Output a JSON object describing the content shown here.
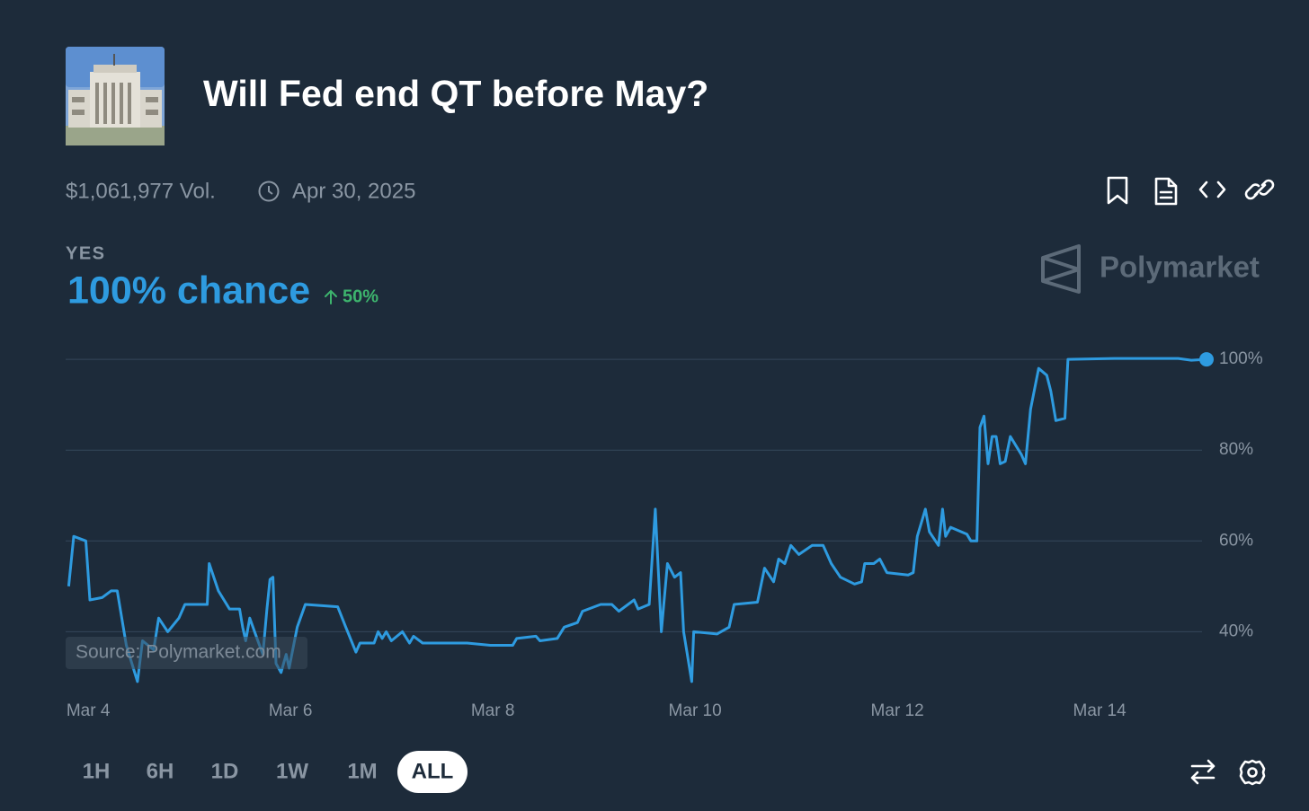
{
  "header": {
    "title": "Will Fed end QT before May?",
    "volume": "$1,061,977 Vol.",
    "end_date": "Apr 30, 2025"
  },
  "outcome": {
    "label": "YES",
    "chance": "100% chance",
    "change": "50%"
  },
  "brand": "Polymarket",
  "chart_data": {
    "type": "line",
    "color": "#2e9be0",
    "annotation": "Source: Polymarket.com",
    "x": [
      3.86,
      3.91,
      4.03,
      4.07,
      4.19,
      4.28,
      4.34,
      4.43,
      4.54,
      4.59,
      4.7,
      4.75,
      4.84,
      4.95,
      5.01,
      5.23,
      5.25,
      5.34,
      5.45,
      5.55,
      5.58,
      5.61,
      5.65,
      5.73,
      5.78,
      5.82,
      5.85,
      5.88,
      5.91,
      5.96,
      6.01,
      6.04,
      6.12,
      6.2,
      6.52,
      6.6,
      6.7,
      6.74,
      6.88,
      6.92,
      6.96,
      7.0,
      7.05,
      7.16,
      7.23,
      7.27,
      7.36,
      7.8,
      8.03,
      8.25,
      8.29,
      8.48,
      8.52,
      8.69,
      8.76,
      8.89,
      8.94,
      9.12,
      9.23,
      9.3,
      9.45,
      9.49,
      9.6,
      9.66,
      9.72,
      9.78,
      9.85,
      9.91,
      9.94,
      10.02,
      10.04,
      10.27,
      10.39,
      10.44,
      10.67,
      10.74,
      10.83,
      10.88,
      10.94,
      11.0,
      11.08,
      11.21,
      11.32,
      11.4,
      11.49,
      11.63,
      11.7,
      11.73,
      11.82,
      11.88,
      11.95,
      12.16,
      12.21,
      12.25,
      12.33,
      12.37,
      12.46,
      12.5,
      12.53,
      12.58,
      12.74,
      12.78,
      12.84,
      12.87,
      12.91,
      12.95,
      12.99,
      13.03,
      13.07,
      13.12,
      13.17,
      13.28,
      13.32,
      13.37,
      13.45,
      13.53,
      13.57,
      13.62,
      13.71,
      13.74,
      14.2,
      14.83,
      14.96,
      15.11
    ],
    "values": [
      50,
      61,
      60,
      47,
      47.5,
      49,
      49,
      37,
      29,
      38,
      36,
      43,
      40,
      43,
      46,
      46,
      55,
      49,
      45,
      45,
      41,
      38,
      43,
      38,
      35,
      45,
      51.5,
      52,
      33,
      31,
      35,
      32,
      41,
      46,
      45.5,
      41,
      35.5,
      37.5,
      37.5,
      40,
      38.5,
      40,
      38,
      40,
      37.5,
      39,
      37.5,
      37.5,
      37,
      37,
      38.5,
      39,
      38,
      38.5,
      41,
      42,
      44.5,
      46,
      46,
      44.5,
      47,
      45,
      46,
      67,
      40,
      55,
      52,
      53,
      40,
      29,
      40,
      39.5,
      41,
      46,
      46.5,
      54,
      51,
      56,
      55,
      59,
      57,
      59,
      59,
      55,
      52,
      50.5,
      51,
      55,
      55,
      56,
      53,
      52.5,
      53,
      61,
      67,
      62,
      59,
      67,
      61,
      63,
      61.5,
      60,
      60,
      85,
      87.5,
      77,
      83,
      83,
      77,
      77.5,
      83,
      79,
      77,
      89,
      98,
      96.5,
      93,
      86.5,
      87,
      100,
      100.2,
      100.2,
      99.8,
      100
    ],
    "xlim": [
      3.83,
      15.11
    ],
    "xticks": [
      {
        "value": 4,
        "label": "Mar 4"
      },
      {
        "value": 6,
        "label": "Mar 6"
      },
      {
        "value": 8,
        "label": "Mar 8"
      },
      {
        "value": 10,
        "label": "Mar 10"
      },
      {
        "value": 12,
        "label": "Mar 12"
      },
      {
        "value": 14,
        "label": "Mar 14"
      }
    ],
    "ylim": [
      28,
      102
    ],
    "yticks": [
      {
        "value": 40,
        "label": "40%"
      },
      {
        "value": 60,
        "label": "60%"
      },
      {
        "value": 80,
        "label": "80%"
      },
      {
        "value": 100,
        "label": "100%"
      }
    ],
    "grid": true
  },
  "time_ranges": [
    "1H",
    "6H",
    "1D",
    "1W",
    "1M",
    "ALL"
  ],
  "selected_range": 5
}
